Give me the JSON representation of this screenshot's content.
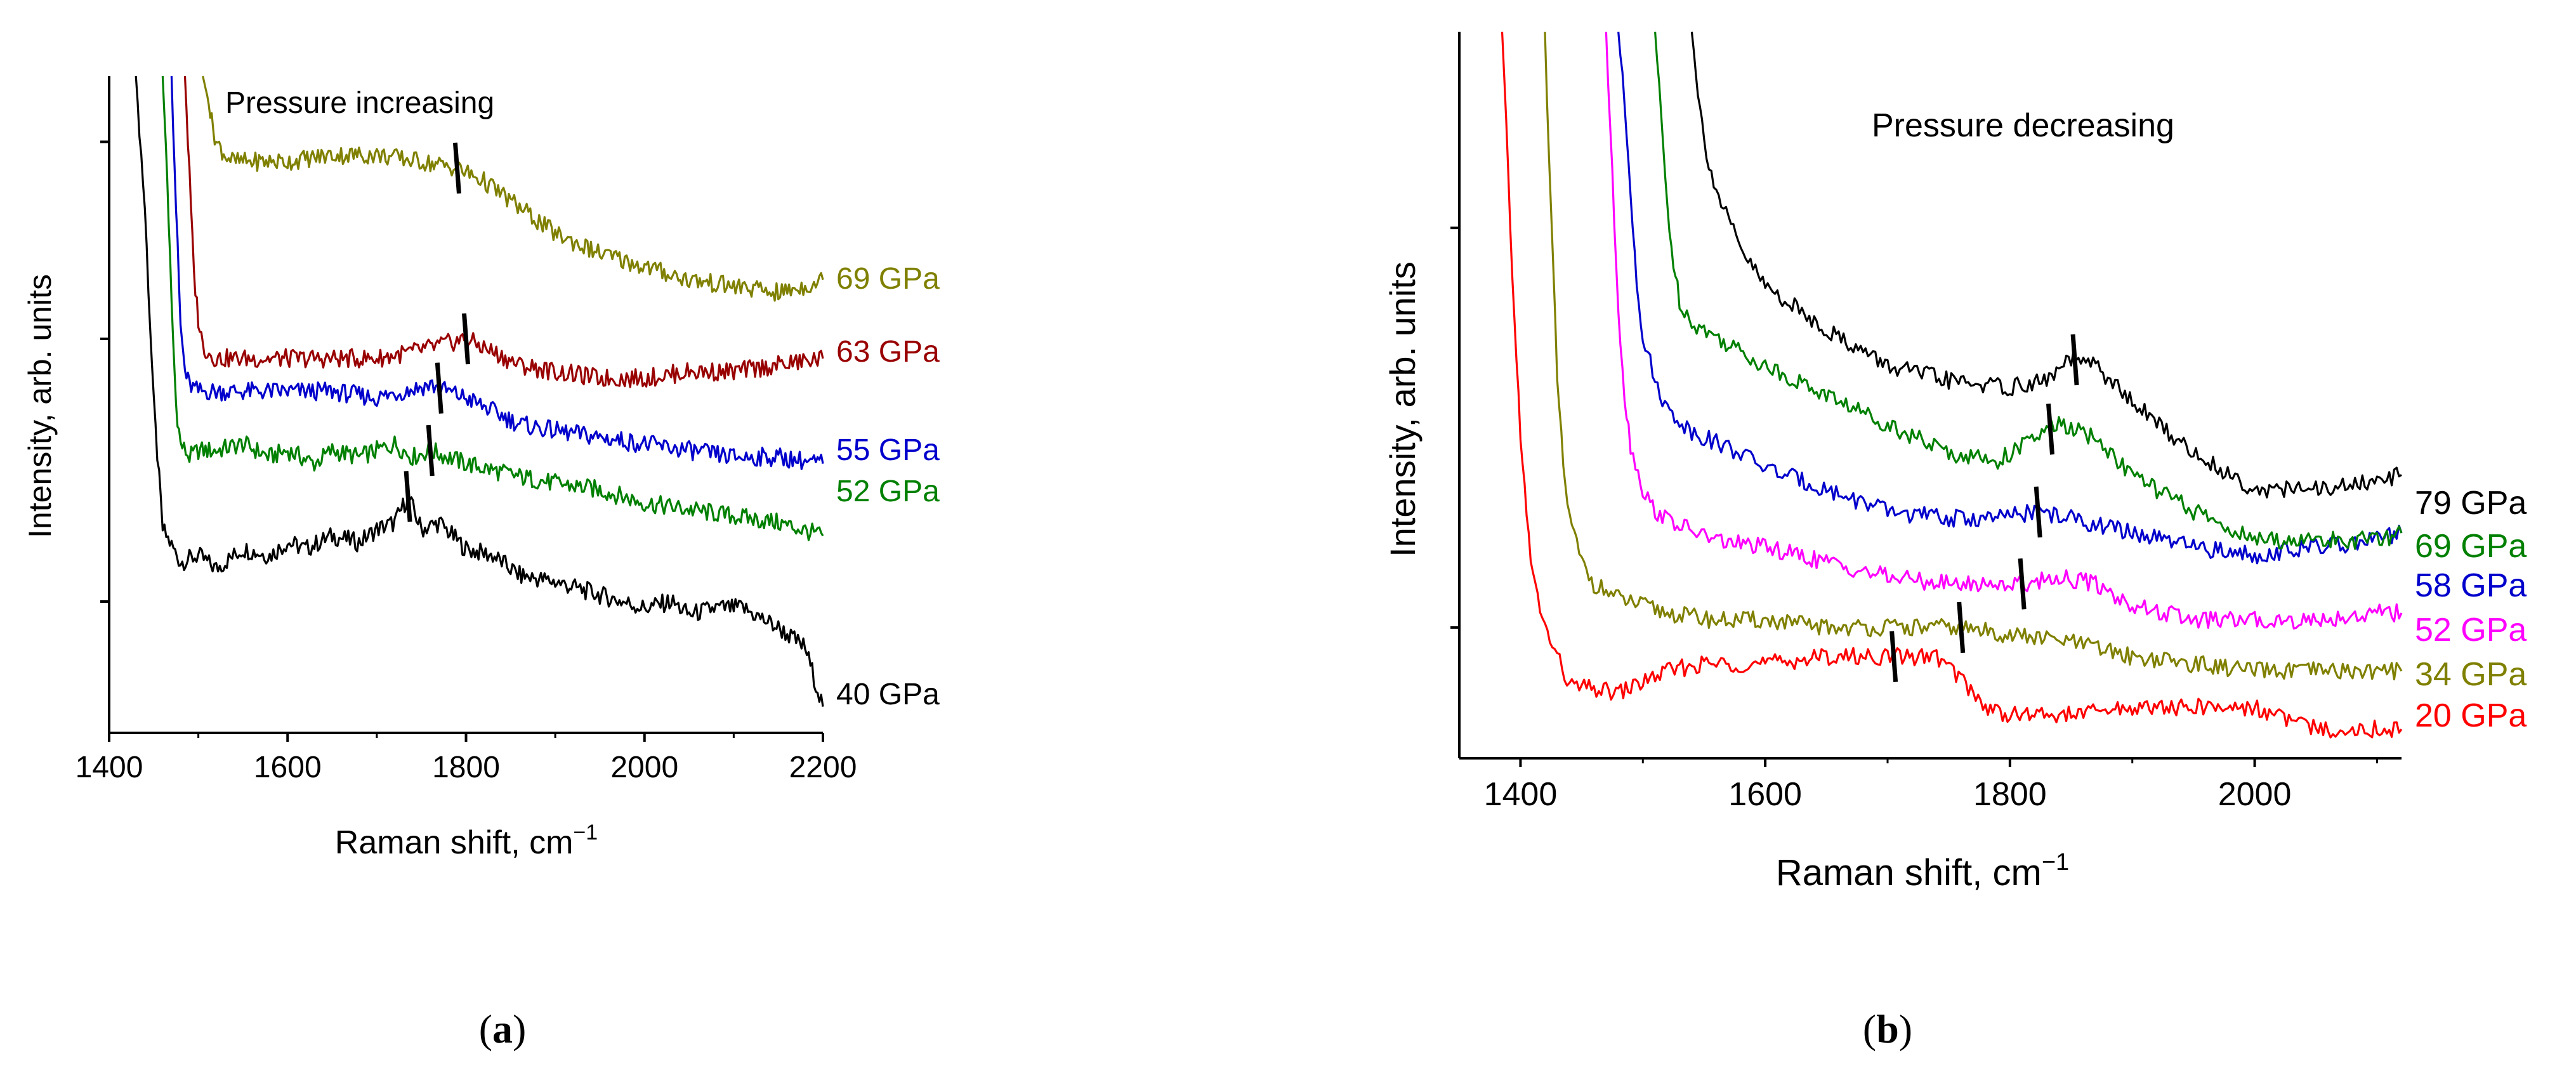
{
  "chart_data": [
    {
      "type": "line",
      "panel_label": "a",
      "title": "Pressure increasing",
      "xlabel": "Raman shift, cm",
      "xlabel_sup": "−1",
      "ylabel": "Intensity, arb. units",
      "xlim": [
        1400,
        2200
      ],
      "ylim": [
        0,
        100
      ],
      "xticks": [
        1400,
        1600,
        1800,
        2000,
        2200
      ],
      "yticks_unlabeled": [
        20,
        60,
        90
      ],
      "series": [
        {
          "name": "40 GPa",
          "label": "40 GPa",
          "color": "#000000",
          "x": [
            1430,
            1440,
            1450,
            1460,
            1480,
            1500,
            1520,
            1550,
            1580,
            1600,
            1620,
            1650,
            1680,
            1700,
            1720,
            1735,
            1750,
            1770,
            1800,
            1830,
            1860,
            1900,
            1950,
            2000,
            2030,
            2050,
            2080,
            2110,
            2150,
            2180,
            2200
          ],
          "y": [
            100,
            80,
            50,
            31,
            26,
            27,
            25,
            28,
            27,
            29,
            28,
            30,
            29,
            31,
            32,
            36,
            31,
            32,
            28,
            27,
            24,
            23,
            21,
            19,
            20,
            18,
            19,
            19,
            16,
            13,
            4
          ],
          "marker_x": 1735
        },
        {
          "name": "52 GPa",
          "label": "52 GPa",
          "color": "#008000",
          "x": [
            1460,
            1465,
            1470,
            1475,
            1480,
            1490,
            1500,
            1520,
            1550,
            1580,
            1600,
            1630,
            1650,
            1680,
            1700,
            1720,
            1740,
            1760,
            1780,
            1800,
            1830,
            1860,
            1900,
            1950,
            2000,
            2050,
            2100,
            2150,
            2200
          ],
          "y": [
            100,
            85,
            65,
            50,
            44,
            42,
            43,
            43,
            44,
            42,
            43,
            41,
            43,
            42,
            43,
            44,
            42,
            43,
            42,
            41,
            40,
            39,
            38,
            37,
            35,
            34,
            33,
            32,
            30
          ],
          "marker_x": 1760
        },
        {
          "name": "55 GPa",
          "label": "55 GPa",
          "color": "#0000cc",
          "x": [
            1470,
            1475,
            1480,
            1485,
            1490,
            1500,
            1520,
            1550,
            1600,
            1650,
            1700,
            1730,
            1760,
            1780,
            1800,
            1830,
            1860,
            1900,
            1950,
            2000,
            2050,
            2100,
            2150,
            2200
          ],
          "y": [
            100,
            80,
            62,
            55,
            53,
            52,
            52,
            52,
            52,
            52,
            51,
            52,
            53,
            52,
            51,
            49,
            47,
            46,
            45,
            44,
            43,
            42,
            42,
            41
          ],
          "marker_x": 1770
        },
        {
          "name": "63 GPa",
          "label": "63 GPa",
          "color": "#990000",
          "x": [
            1485,
            1490,
            1495,
            1500,
            1505,
            1510,
            1520,
            1550,
            1600,
            1650,
            1700,
            1740,
            1770,
            1800,
            1830,
            1860,
            1900,
            1950,
            2000,
            2050,
            2100,
            2150,
            2200
          ],
          "y": [
            100,
            85,
            70,
            63,
            59,
            58,
            57,
            57,
            57,
            57,
            57,
            58,
            59,
            60,
            58,
            56,
            55,
            54,
            54,
            55,
            55,
            56,
            57
          ],
          "marker_x": 1800
        },
        {
          "name": "69 GPa",
          "label": "69 GPa",
          "color": "#808000",
          "x": [
            1505,
            1510,
            1515,
            1520,
            1525,
            1530,
            1540,
            1560,
            1600,
            1650,
            1700,
            1750,
            1790,
            1820,
            1850,
            1880,
            1900,
            1950,
            2000,
            2050,
            2100,
            2150,
            2180,
            2200
          ],
          "y": [
            100,
            97,
            93,
            90,
            89,
            88,
            87,
            87,
            87,
            88,
            88,
            87,
            86,
            84,
            81,
            78,
            76,
            73,
            71,
            69,
            68,
            67,
            68,
            69
          ],
          "marker_x": 1790
        }
      ]
    },
    {
      "type": "line",
      "panel_label": "b",
      "title": "Pressure decreasing",
      "xlabel": "Raman shift, cm",
      "xlabel_sup": "−1",
      "ylabel": "Intensity, arb. units",
      "xlim": [
        1350,
        2120
      ],
      "ylim": [
        0,
        100
      ],
      "xticks": [
        1400,
        1600,
        1800,
        2000
      ],
      "yticks_unlabeled": [
        18,
        73
      ],
      "series": [
        {
          "name": "20 GPa",
          "label": "20 GPa",
          "color": "#ff0000",
          "x": [
            1385,
            1390,
            1395,
            1400,
            1405,
            1410,
            1420,
            1440,
            1480,
            1520,
            1550,
            1600,
            1650,
            1700,
            1740,
            1760,
            1780,
            1800,
            1850,
            1900,
            1950,
            2000,
            2050,
            2080,
            2100,
            2120
          ],
          "y": [
            100,
            80,
            60,
            45,
            33,
            25,
            18,
            10,
            9,
            12,
            13,
            13,
            14,
            14,
            14,
            11,
            7,
            6,
            6,
            7,
            7,
            7,
            4,
            4,
            4,
            4
          ],
          "marker_x": 1705
        },
        {
          "name": "34 GPa",
          "label": "34 GPa",
          "color": "#808000",
          "x": [
            1420,
            1425,
            1430,
            1435,
            1440,
            1450,
            1460,
            1480,
            1520,
            1560,
            1600,
            1650,
            1700,
            1760,
            1800,
            1850,
            1900,
            1950,
            2000,
            2050,
            2100,
            2120
          ],
          "y": [
            100,
            75,
            52,
            40,
            33,
            27,
            24,
            22,
            20,
            19,
            19,
            18,
            18,
            18,
            17,
            16,
            14,
            13,
            12,
            12,
            12,
            12
          ],
          "marker_x": 1760
        },
        {
          "name": "52 GPa",
          "label": "52 GPa",
          "color": "#ff00ff",
          "x": [
            1470,
            1475,
            1480,
            1485,
            1490,
            1500,
            1510,
            1530,
            1560,
            1600,
            1650,
            1700,
            1750,
            1780,
            1810,
            1840,
            1870,
            1900,
            1950,
            2000,
            2050,
            2100,
            2120
          ],
          "y": [
            100,
            80,
            62,
            50,
            43,
            37,
            34,
            32,
            30,
            29,
            27,
            25,
            24,
            24,
            24,
            25,
            24,
            21,
            19,
            19,
            19,
            20,
            20
          ],
          "marker_x": 1810
        },
        {
          "name": "58 GPa",
          "label": "58 GPa",
          "color": "#0000cc",
          "x": [
            1480,
            1485,
            1490,
            1495,
            1500,
            1510,
            1520,
            1540,
            1580,
            1600,
            1650,
            1700,
            1750,
            1790,
            1820,
            1850,
            1900,
            1950,
            2000,
            2050,
            2100,
            2120
          ],
          "y": [
            100,
            90,
            78,
            66,
            58,
            52,
            48,
            45,
            42,
            40,
            37,
            34,
            33,
            33,
            34,
            33,
            31,
            29,
            28,
            29,
            30,
            31
          ],
          "marker_x": 1823
        },
        {
          "name": "69 GPa",
          "label": "69 GPa",
          "color": "#008000",
          "x": [
            1510,
            1515,
            1520,
            1525,
            1530,
            1540,
            1560,
            1600,
            1650,
            1700,
            1750,
            1790,
            1820,
            1840,
            1870,
            1900,
            1950,
            2000,
            2050,
            2100,
            2120
          ],
          "y": [
            100,
            88,
            76,
            68,
            63,
            60,
            58,
            54,
            50,
            46,
            42,
            41,
            44,
            46,
            44,
            39,
            34,
            30,
            30,
            30,
            31
          ],
          "marker_x": 1833
        },
        {
          "name": "79 GPa",
          "label": "79 GPa",
          "color": "#000000",
          "x": [
            1540,
            1545,
            1550,
            1560,
            1580,
            1600,
            1650,
            1700,
            1750,
            1800,
            1830,
            1850,
            1870,
            1900,
            1950,
            2000,
            2050,
            2100,
            2120
          ],
          "y": [
            100,
            92,
            85,
            78,
            70,
            65,
            59,
            54,
            52,
            51,
            52,
            55,
            54,
            49,
            42,
            37,
            37,
            38,
            39
          ],
          "marker_x": 1853
        }
      ]
    }
  ]
}
